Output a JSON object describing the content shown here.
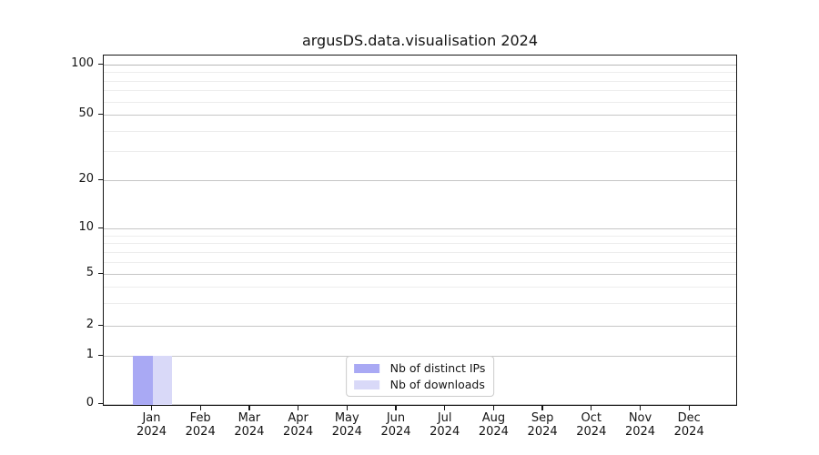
{
  "title": "argusDS.data.visualisation 2024",
  "chart_data": {
    "type": "bar",
    "title": "argusDS.data.visualisation 2024",
    "categories": [
      "Jan 2024",
      "Feb 2024",
      "Mar 2024",
      "Apr 2024",
      "May 2024",
      "Jun 2024",
      "Jul 2024",
      "Aug 2024",
      "Sep 2024",
      "Oct 2024",
      "Nov 2024",
      "Dec 2024"
    ],
    "months": [
      "Jan",
      "Feb",
      "Mar",
      "Apr",
      "May",
      "Jun",
      "Jul",
      "Aug",
      "Sep",
      "Oct",
      "Nov",
      "Dec"
    ],
    "year": "2024",
    "series": [
      {
        "name": "Nb of distinct IPs",
        "color": "#a9a9f4",
        "values": [
          1,
          0,
          0,
          0,
          0,
          0,
          0,
          0,
          0,
          0,
          0,
          0
        ]
      },
      {
        "name": "Nb of downloads",
        "color": "#d9d9f8",
        "values": [
          1,
          0,
          0,
          0,
          0,
          0,
          0,
          0,
          0,
          0,
          0,
          0
        ]
      }
    ],
    "xlabel": "",
    "ylabel": "",
    "yticks": [
      0,
      1,
      2,
      5,
      10,
      20,
      50,
      100
    ],
    "yticks_minor": [
      3,
      4,
      6,
      7,
      8,
      9,
      30,
      40,
      60,
      70,
      80,
      90
    ],
    "yscale": "symlog-like",
    "ylim": [
      0,
      115
    ],
    "grid": {
      "axis": "y",
      "major": true,
      "minor": true
    },
    "legend": {
      "position": "lower center",
      "items": [
        "Nb of distinct IPs",
        "Nb of downloads"
      ]
    }
  },
  "colors": {
    "grid_major": "#c6c6c6",
    "grid_minor": "#ededed",
    "spine": "#151515",
    "background": "#ffffff"
  }
}
